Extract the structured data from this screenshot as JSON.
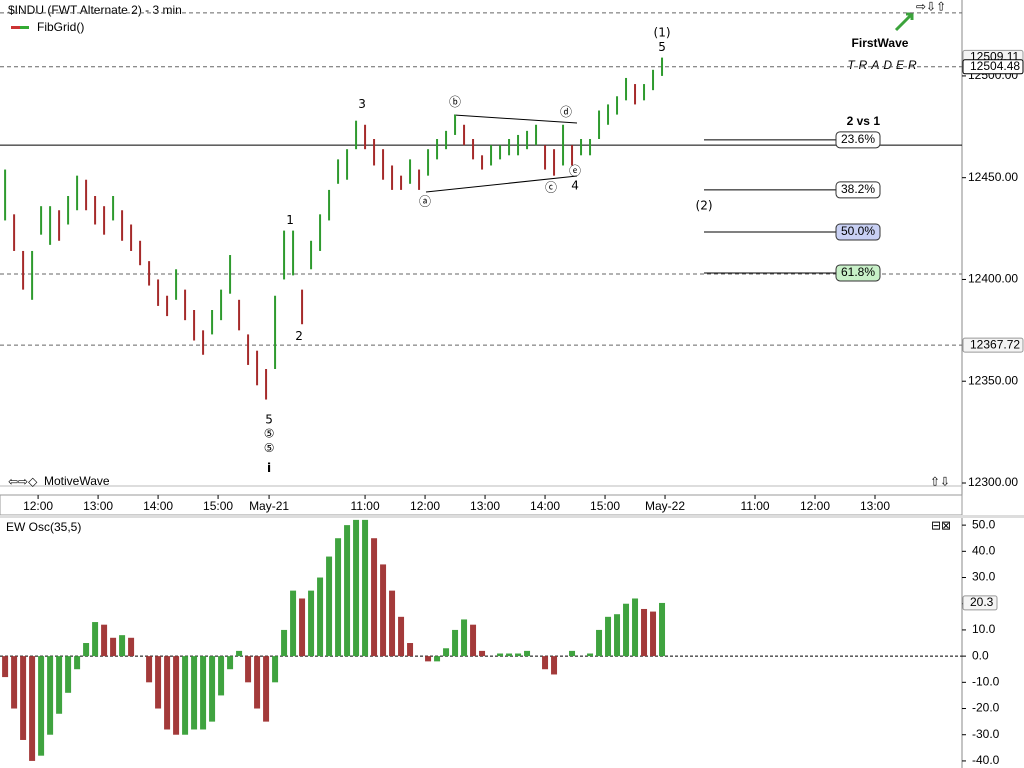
{
  "header": {
    "title": "$INDU (FWT Alternate 2) - 3 min",
    "study": "FibGrid()",
    "branding": "MotiveWave"
  },
  "logo": {
    "name": "FirstWave",
    "tagline": "TRADER"
  },
  "chart_data": [
    {
      "type": "hilo",
      "x": [
        0,
        3,
        6,
        9,
        12,
        15,
        18,
        21,
        24,
        27,
        30,
        33,
        36,
        39,
        42,
        45,
        48,
        51,
        54,
        57,
        60,
        63,
        66,
        69,
        72,
        75,
        78,
        81,
        84,
        87,
        90,
        93,
        96,
        99,
        102,
        105,
        108,
        111,
        114,
        117,
        120,
        123,
        126,
        129,
        132,
        135,
        138,
        141,
        144,
        147,
        150,
        153,
        156,
        159,
        162,
        165,
        168,
        171,
        174,
        177,
        180,
        183,
        186,
        189,
        192,
        195,
        198,
        201,
        204,
        207,
        210,
        213,
        216,
        219
      ],
      "high": [
        12454,
        12432,
        12414,
        12414,
        12436,
        12436,
        12434,
        12441,
        12451,
        12449,
        12441,
        12436,
        12441,
        12434,
        12427,
        12419,
        12409,
        12400,
        12392,
        12405,
        12395,
        12385,
        12375,
        12385,
        12395,
        12412,
        12390,
        12373,
        12365,
        12356,
        12392,
        12424,
        12424,
        12395,
        12419,
        12432,
        12444,
        12459,
        12464,
        12478,
        12476,
        12469,
        12464,
        12456,
        12451,
        12459,
        12454,
        12464,
        12469,
        12473,
        12481,
        12476,
        12469,
        12461,
        12466,
        12466,
        12469,
        12471,
        12473,
        12476,
        12466,
        12464,
        12476,
        12466,
        12469,
        12469,
        12483,
        12486,
        12490,
        12499,
        12496,
        12496,
        12503,
        12509
      ],
      "low": [
        12429,
        12414,
        12395,
        12390,
        12422,
        12417,
        12419,
        12427,
        12434,
        12434,
        12427,
        12422,
        12429,
        12419,
        12414,
        12407,
        12397,
        12387,
        12382,
        12390,
        12380,
        12370,
        12363,
        12373,
        12380,
        12393,
        12375,
        12358,
        12348,
        12341,
        12356,
        12400,
        12402,
        12378,
        12405,
        12414,
        12429,
        12447,
        12449,
        12464,
        12464,
        12456,
        12449,
        12444,
        12444,
        12447,
        12444,
        12451,
        12459,
        12464,
        12471,
        12466,
        12459,
        12454,
        12456,
        12459,
        12461,
        12461,
        12464,
        12466,
        12454,
        12451,
        12456,
        12456,
        12461,
        12461,
        12469,
        12476,
        12481,
        12488,
        12486,
        12488,
        12493,
        12500
      ],
      "up_color": "#2e9a2e",
      "down_color": "#a52a2a",
      "xlim": [
        -1.7,
        319
      ],
      "ylim": [
        12294.1,
        12537.3
      ],
      "xticks": [
        {
          "value": 11,
          "label": "12:00"
        },
        {
          "value": 31,
          "label": "13:00"
        },
        {
          "value": 51,
          "label": "14:00"
        },
        {
          "value": 71,
          "label": "15:00"
        },
        {
          "value": 88,
          "label": "May-21"
        },
        {
          "value": 120,
          "label": "11:00"
        },
        {
          "value": 140,
          "label": "12:00"
        },
        {
          "value": 160,
          "label": "13:00"
        },
        {
          "value": 180,
          "label": "14:00"
        },
        {
          "value": 200,
          "label": "15:00"
        },
        {
          "value": 220,
          "label": "May-22"
        },
        {
          "value": 250,
          "label": "11:00"
        },
        {
          "value": 270,
          "label": "12:00"
        },
        {
          "value": 290,
          "label": "13:00"
        }
      ],
      "yticks": [
        {
          "value": 12300,
          "label": "12300.00"
        },
        {
          "value": 12350,
          "label": "12350.00"
        },
        {
          "value": 12400,
          "label": "12400.00"
        },
        {
          "value": 12450,
          "label": "12450.00"
        },
        {
          "value": 12500,
          "label": "12500.00"
        }
      ],
      "levels": [
        {
          "value": 12531,
          "style": "dashed"
        },
        {
          "value": 12509.11,
          "style": "none",
          "boxed": true
        },
        {
          "value": 12504.48,
          "style": "dashed",
          "boxed": true,
          "dark": true
        },
        {
          "value": 12466,
          "style": "solid"
        },
        {
          "value": 12402.7,
          "style": "dashed"
        },
        {
          "value": 12367.72,
          "style": "dashed",
          "boxed": true
        }
      ],
      "fib_title": "2 vs 1",
      "fib_levels": [
        {
          "value": 23.6,
          "label": "23.6%",
          "price": 12468.6,
          "color": "#ffffff"
        },
        {
          "value": 38.2,
          "label": "38.2%",
          "price": 12444,
          "color": "#ffffff"
        },
        {
          "value": 50,
          "label": "50.0%",
          "price": 12423.3,
          "color": "#c8d0f4"
        },
        {
          "value": 61.8,
          "label": "61.8%",
          "price": 12403.2,
          "color": "#c8f0c8"
        }
      ],
      "annotations": [
        {
          "text": "(1)",
          "x": 219,
          "y": 12521
        },
        {
          "text": "5",
          "x": 219,
          "y": 12514
        },
        {
          "text": "3",
          "x": 119,
          "y": 12486
        },
        {
          "text": "ⓑ",
          "x": 150,
          "y": 12487
        },
        {
          "text": "ⓓ",
          "x": 187,
          "y": 12482
        },
        {
          "text": "ⓐ",
          "x": 140,
          "y": 12438
        },
        {
          "text": "ⓒ",
          "x": 182,
          "y": 12445
        },
        {
          "text": "ⓔ",
          "x": 190,
          "y": 12453
        },
        {
          "text": "4",
          "x": 190,
          "y": 12446
        },
        {
          "text": "1",
          "x": 95,
          "y": 12429
        },
        {
          "text": "2",
          "x": 98,
          "y": 12372
        },
        {
          "text": "5",
          "x": 88,
          "y": 12331
        },
        {
          "text": "⑤",
          "x": 88,
          "y": 12324
        },
        {
          "text": "⑤",
          "x": 88,
          "y": 12317
        },
        {
          "text": "i",
          "x": 88,
          "y": 12307
        },
        {
          "text": "(2)",
          "x": 233,
          "y": 12436
        }
      ]
    },
    {
      "type": "osc",
      "title": "EW Osc(35,5)",
      "x": [
        0,
        3,
        6,
        9,
        12,
        15,
        18,
        21,
        24,
        27,
        30,
        33,
        36,
        39,
        42,
        45,
        48,
        51,
        54,
        57,
        60,
        63,
        66,
        69,
        72,
        75,
        78,
        81,
        84,
        87,
        90,
        93,
        96,
        99,
        102,
        105,
        108,
        111,
        114,
        117,
        120,
        123,
        126,
        129,
        132,
        135,
        138,
        141,
        144,
        147,
        150,
        153,
        156,
        159,
        162,
        165,
        168,
        171,
        174,
        177,
        180,
        183,
        186,
        189,
        192,
        195,
        198,
        201,
        204,
        207,
        210,
        213,
        216,
        219
      ],
      "values": [
        -8,
        -20,
        -32,
        -40,
        -38,
        -30,
        -22,
        -14,
        -5,
        5,
        13,
        12,
        7,
        8,
        7,
        0,
        -10,
        -20,
        -28,
        -30,
        -30,
        -28,
        -28,
        -25,
        -15,
        -5,
        2,
        -10,
        -20,
        -25,
        -10,
        10,
        25,
        22,
        25,
        30,
        38,
        45,
        50,
        52,
        52,
        45,
        35,
        25,
        15,
        5,
        0,
        -2,
        -2,
        3,
        10,
        14,
        12,
        2,
        0,
        1,
        1,
        1,
        2,
        0,
        -5,
        -7,
        0,
        2,
        0,
        1,
        10,
        15,
        16,
        20,
        22,
        18,
        17,
        20.3
      ],
      "up_color": "#3fa33f",
      "down_color": "#a33a3a",
      "xlim": [
        -1.7,
        319
      ],
      "ylim": [
        -42.7,
        53.1
      ],
      "yticks": [
        {
          "value": -40,
          "label": "-40.0"
        },
        {
          "value": -30,
          "label": "-30.0"
        },
        {
          "value": -20,
          "label": "-20.0"
        },
        {
          "value": -10,
          "label": "-10.0"
        },
        {
          "value": 0,
          "label": "0.0"
        },
        {
          "value": 10,
          "label": "10.0"
        },
        {
          "value": 20,
          "label": "20.0"
        },
        {
          "value": 30,
          "label": "30.0"
        },
        {
          "value": 40,
          "label": "40.0"
        },
        {
          "value": 50,
          "label": "50.0"
        }
      ]
    }
  ]
}
